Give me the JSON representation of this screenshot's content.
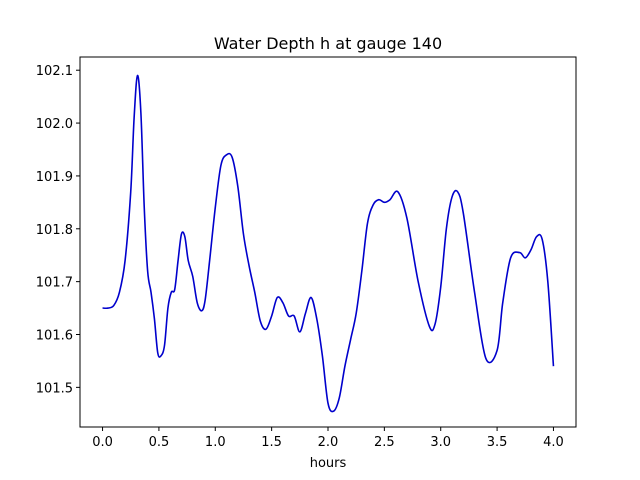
{
  "chart_data": {
    "type": "line",
    "title": "Water Depth h at gauge 140",
    "xlabel": "hours",
    "ylabel": "",
    "xlim": [
      -0.2,
      4.2
    ],
    "ylim": [
      101.425,
      102.125
    ],
    "x_ticks": [
      {
        "value": 0.0,
        "label": "0.0"
      },
      {
        "value": 0.5,
        "label": "0.5"
      },
      {
        "value": 1.0,
        "label": "1.0"
      },
      {
        "value": 1.5,
        "label": "1.5"
      },
      {
        "value": 2.0,
        "label": "2.0"
      },
      {
        "value": 2.5,
        "label": "2.5"
      },
      {
        "value": 3.0,
        "label": "3.0"
      },
      {
        "value": 3.5,
        "label": "3.5"
      },
      {
        "value": 4.0,
        "label": "4.0"
      }
    ],
    "y_ticks": [
      {
        "value": 101.5,
        "label": "101.5"
      },
      {
        "value": 101.6,
        "label": "101.6"
      },
      {
        "value": 101.7,
        "label": "101.7"
      },
      {
        "value": 101.8,
        "label": "101.8"
      },
      {
        "value": 101.9,
        "label": "101.9"
      },
      {
        "value": 102.0,
        "label": "102.0"
      },
      {
        "value": 102.1,
        "label": "102.1"
      }
    ],
    "grid": false,
    "series": [
      {
        "color": "#0000cc",
        "x": [
          0.0,
          0.05,
          0.1,
          0.15,
          0.2,
          0.25,
          0.28,
          0.31,
          0.34,
          0.37,
          0.4,
          0.43,
          0.46,
          0.49,
          0.52,
          0.55,
          0.58,
          0.61,
          0.64,
          0.67,
          0.7,
          0.73,
          0.76,
          0.8,
          0.84,
          0.88,
          0.91,
          0.95,
          1.0,
          1.05,
          1.1,
          1.15,
          1.2,
          1.25,
          1.3,
          1.35,
          1.4,
          1.45,
          1.5,
          1.55,
          1.6,
          1.65,
          1.7,
          1.75,
          1.8,
          1.85,
          1.9,
          1.95,
          2.0,
          2.05,
          2.1,
          2.15,
          2.2,
          2.25,
          2.3,
          2.35,
          2.4,
          2.45,
          2.5,
          2.55,
          2.62,
          2.7,
          2.8,
          2.9,
          2.95,
          3.0,
          3.05,
          3.1,
          3.15,
          3.2,
          3.3,
          3.4,
          3.5,
          3.55,
          3.62,
          3.7,
          3.75,
          3.8,
          3.85,
          3.9,
          3.95,
          4.0
        ],
        "values": [
          101.65,
          101.65,
          101.655,
          101.68,
          101.74,
          101.87,
          102.01,
          102.09,
          102.02,
          101.84,
          101.72,
          101.68,
          101.63,
          101.565,
          101.56,
          101.58,
          101.65,
          101.68,
          101.685,
          101.74,
          101.79,
          101.785,
          101.74,
          101.71,
          101.66,
          101.645,
          101.665,
          101.74,
          101.84,
          101.92,
          101.94,
          101.935,
          101.88,
          101.79,
          101.73,
          101.68,
          101.625,
          101.61,
          101.635,
          101.67,
          101.66,
          101.635,
          101.635,
          101.605,
          101.64,
          101.67,
          101.63,
          101.56,
          101.47,
          101.455,
          101.48,
          101.54,
          101.59,
          101.64,
          101.72,
          101.81,
          101.845,
          101.855,
          101.85,
          101.855,
          101.87,
          101.82,
          101.7,
          101.615,
          101.62,
          101.69,
          101.8,
          101.86,
          101.87,
          101.83,
          101.68,
          101.555,
          101.57,
          101.66,
          101.745,
          101.755,
          101.745,
          101.76,
          101.785,
          101.78,
          101.7,
          101.54
        ]
      }
    ]
  }
}
